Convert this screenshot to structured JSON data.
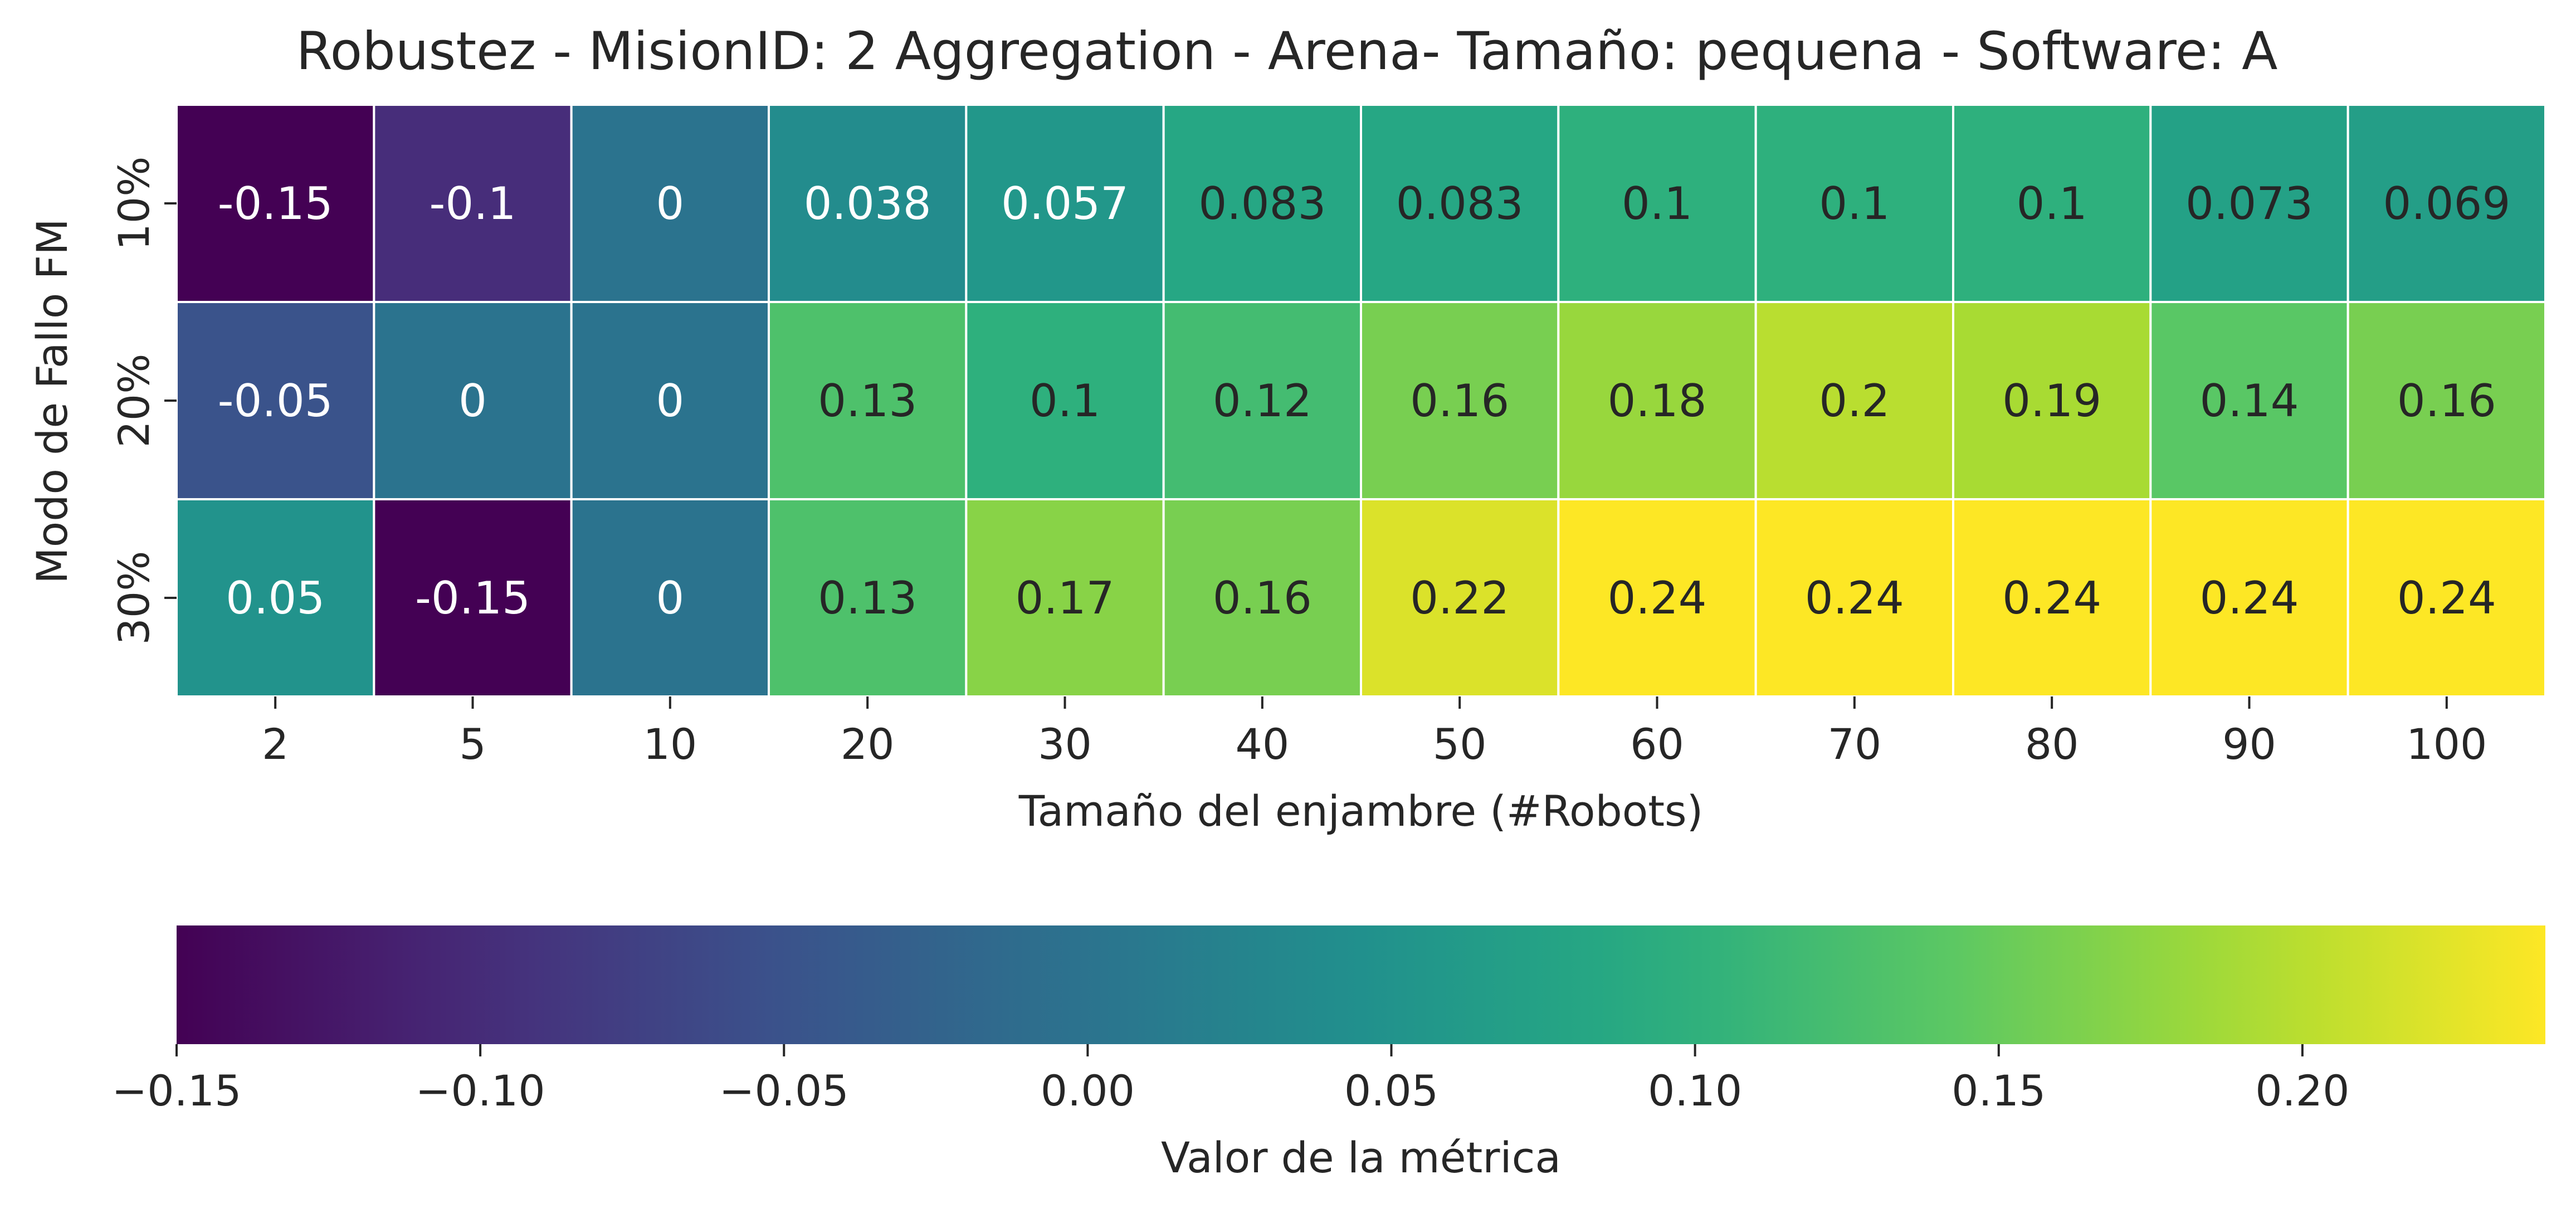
{
  "chart_data": {
    "type": "heatmap",
    "title": "Robustez - MisionID: 2 Aggregation - Arena- Tamaño: pequena - Software: A",
    "xlabel": "Tamaño del enjambre (#Robots)",
    "ylabel": "Modo de Fallo FM",
    "x_categories": [
      "2",
      "5",
      "10",
      "20",
      "30",
      "40",
      "50",
      "60",
      "70",
      "80",
      "90",
      "100"
    ],
    "y_categories": [
      "10%",
      "20%",
      "30%"
    ],
    "values": [
      [
        -0.15,
        -0.1,
        0,
        0.038,
        0.057,
        0.083,
        0.083,
        0.1,
        0.1,
        0.1,
        0.073,
        0.069
      ],
      [
        -0.05,
        0,
        0,
        0.13,
        0.1,
        0.12,
        0.16,
        0.18,
        0.2,
        0.19,
        0.14,
        0.16
      ],
      [
        0.05,
        -0.15,
        0,
        0.13,
        0.17,
        0.16,
        0.22,
        0.24,
        0.24,
        0.24,
        0.24,
        0.24
      ]
    ],
    "cell_labels": [
      [
        "-0.15",
        "-0.1",
        "0",
        "0.038",
        "0.057",
        "0.083",
        "0.083",
        "0.1",
        "0.1",
        "0.1",
        "0.073",
        "0.069"
      ],
      [
        "-0.05",
        "0",
        "0",
        "0.13",
        "0.1",
        "0.12",
        "0.16",
        "0.18",
        "0.2",
        "0.19",
        "0.14",
        "0.16"
      ],
      [
        "0.05",
        "-0.15",
        "0",
        "0.13",
        "0.17",
        "0.16",
        "0.22",
        "0.24",
        "0.24",
        "0.24",
        "0.24",
        "0.24"
      ]
    ],
    "colormap": "viridis",
    "vmin": -0.15,
    "vmax": 0.24,
    "colorbar": {
      "orientation": "horizontal",
      "placement": "bottom",
      "label": "Valor de la métrica",
      "ticks": [
        -0.15,
        -0.1,
        -0.05,
        0.0,
        0.05,
        0.1,
        0.15,
        0.2
      ],
      "tick_labels": [
        "−0.15",
        "−0.10",
        "−0.05",
        "0.00",
        "0.05",
        "0.10",
        "0.15",
        "0.20"
      ]
    },
    "cell_border_color": "#ffffff",
    "text_dark_color": "#262626",
    "text_light_color": "#ffffff"
  }
}
